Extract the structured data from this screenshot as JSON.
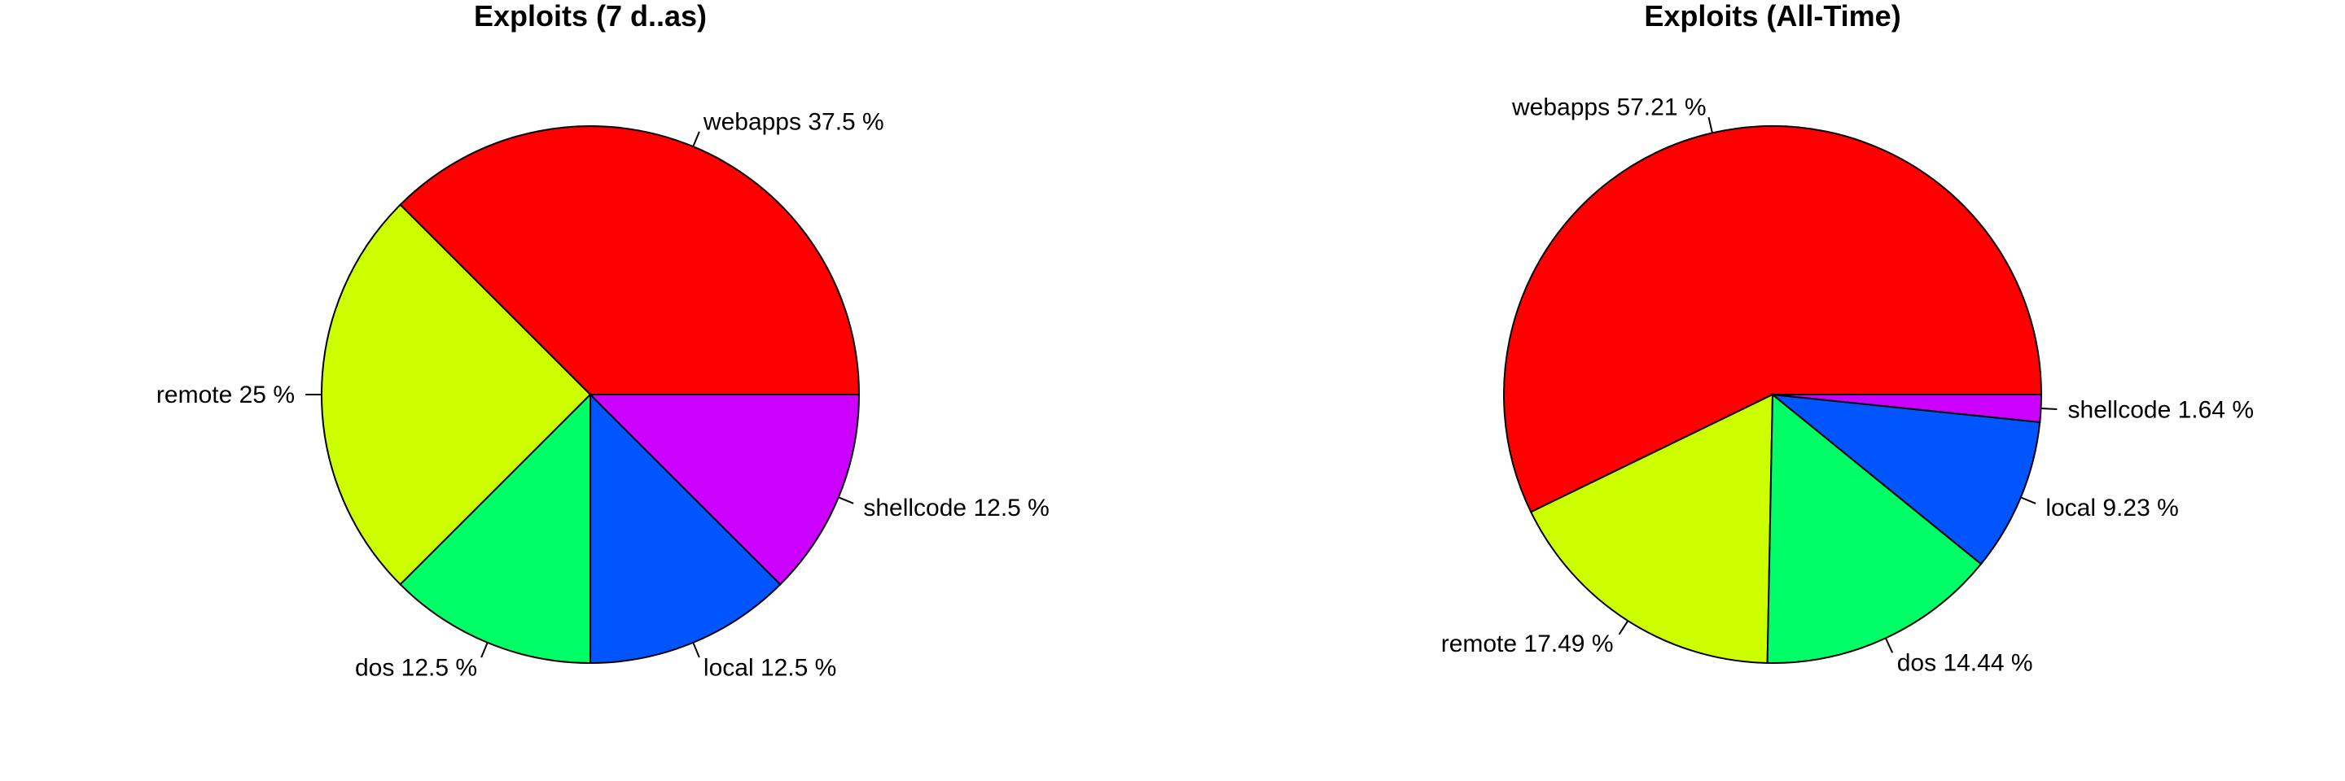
{
  "chart_data": [
    {
      "type": "pie",
      "title": "Exploits (7 d..as)",
      "slices": [
        {
          "category": "webapps",
          "value": 37.5,
          "label": "webapps 37.5 %",
          "color": "#FF0000"
        },
        {
          "category": "remote",
          "value": 25,
          "label": "remote 25 %",
          "color": "#CCFF00"
        },
        {
          "category": "dos",
          "value": 12.5,
          "label": "dos 12.5 %",
          "color": "#00FF66"
        },
        {
          "category": "local",
          "value": 12.5,
          "label": "local 12.5 %",
          "color": "#0055FF"
        },
        {
          "category": "shellcode",
          "value": 12.5,
          "label": "shellcode 12.5 %",
          "color": "#CC00FF"
        }
      ]
    },
    {
      "type": "pie",
      "title": "Exploits (All-Time)",
      "slices": [
        {
          "category": "webapps",
          "value": 57.21,
          "label": "webapps 57.21 %",
          "color": "#FF0000"
        },
        {
          "category": "remote",
          "value": 17.49,
          "label": "remote 17.49 %",
          "color": "#CCFF00"
        },
        {
          "category": "dos",
          "value": 14.44,
          "label": "dos 14.44 %",
          "color": "#00FF66"
        },
        {
          "category": "local",
          "value": 9.23,
          "label": "local 9.23 %",
          "color": "#0055FF"
        },
        {
          "category": "shellcode",
          "value": 1.64,
          "label": "shellcode 1.64 %",
          "color": "#CC00FF"
        }
      ]
    }
  ]
}
